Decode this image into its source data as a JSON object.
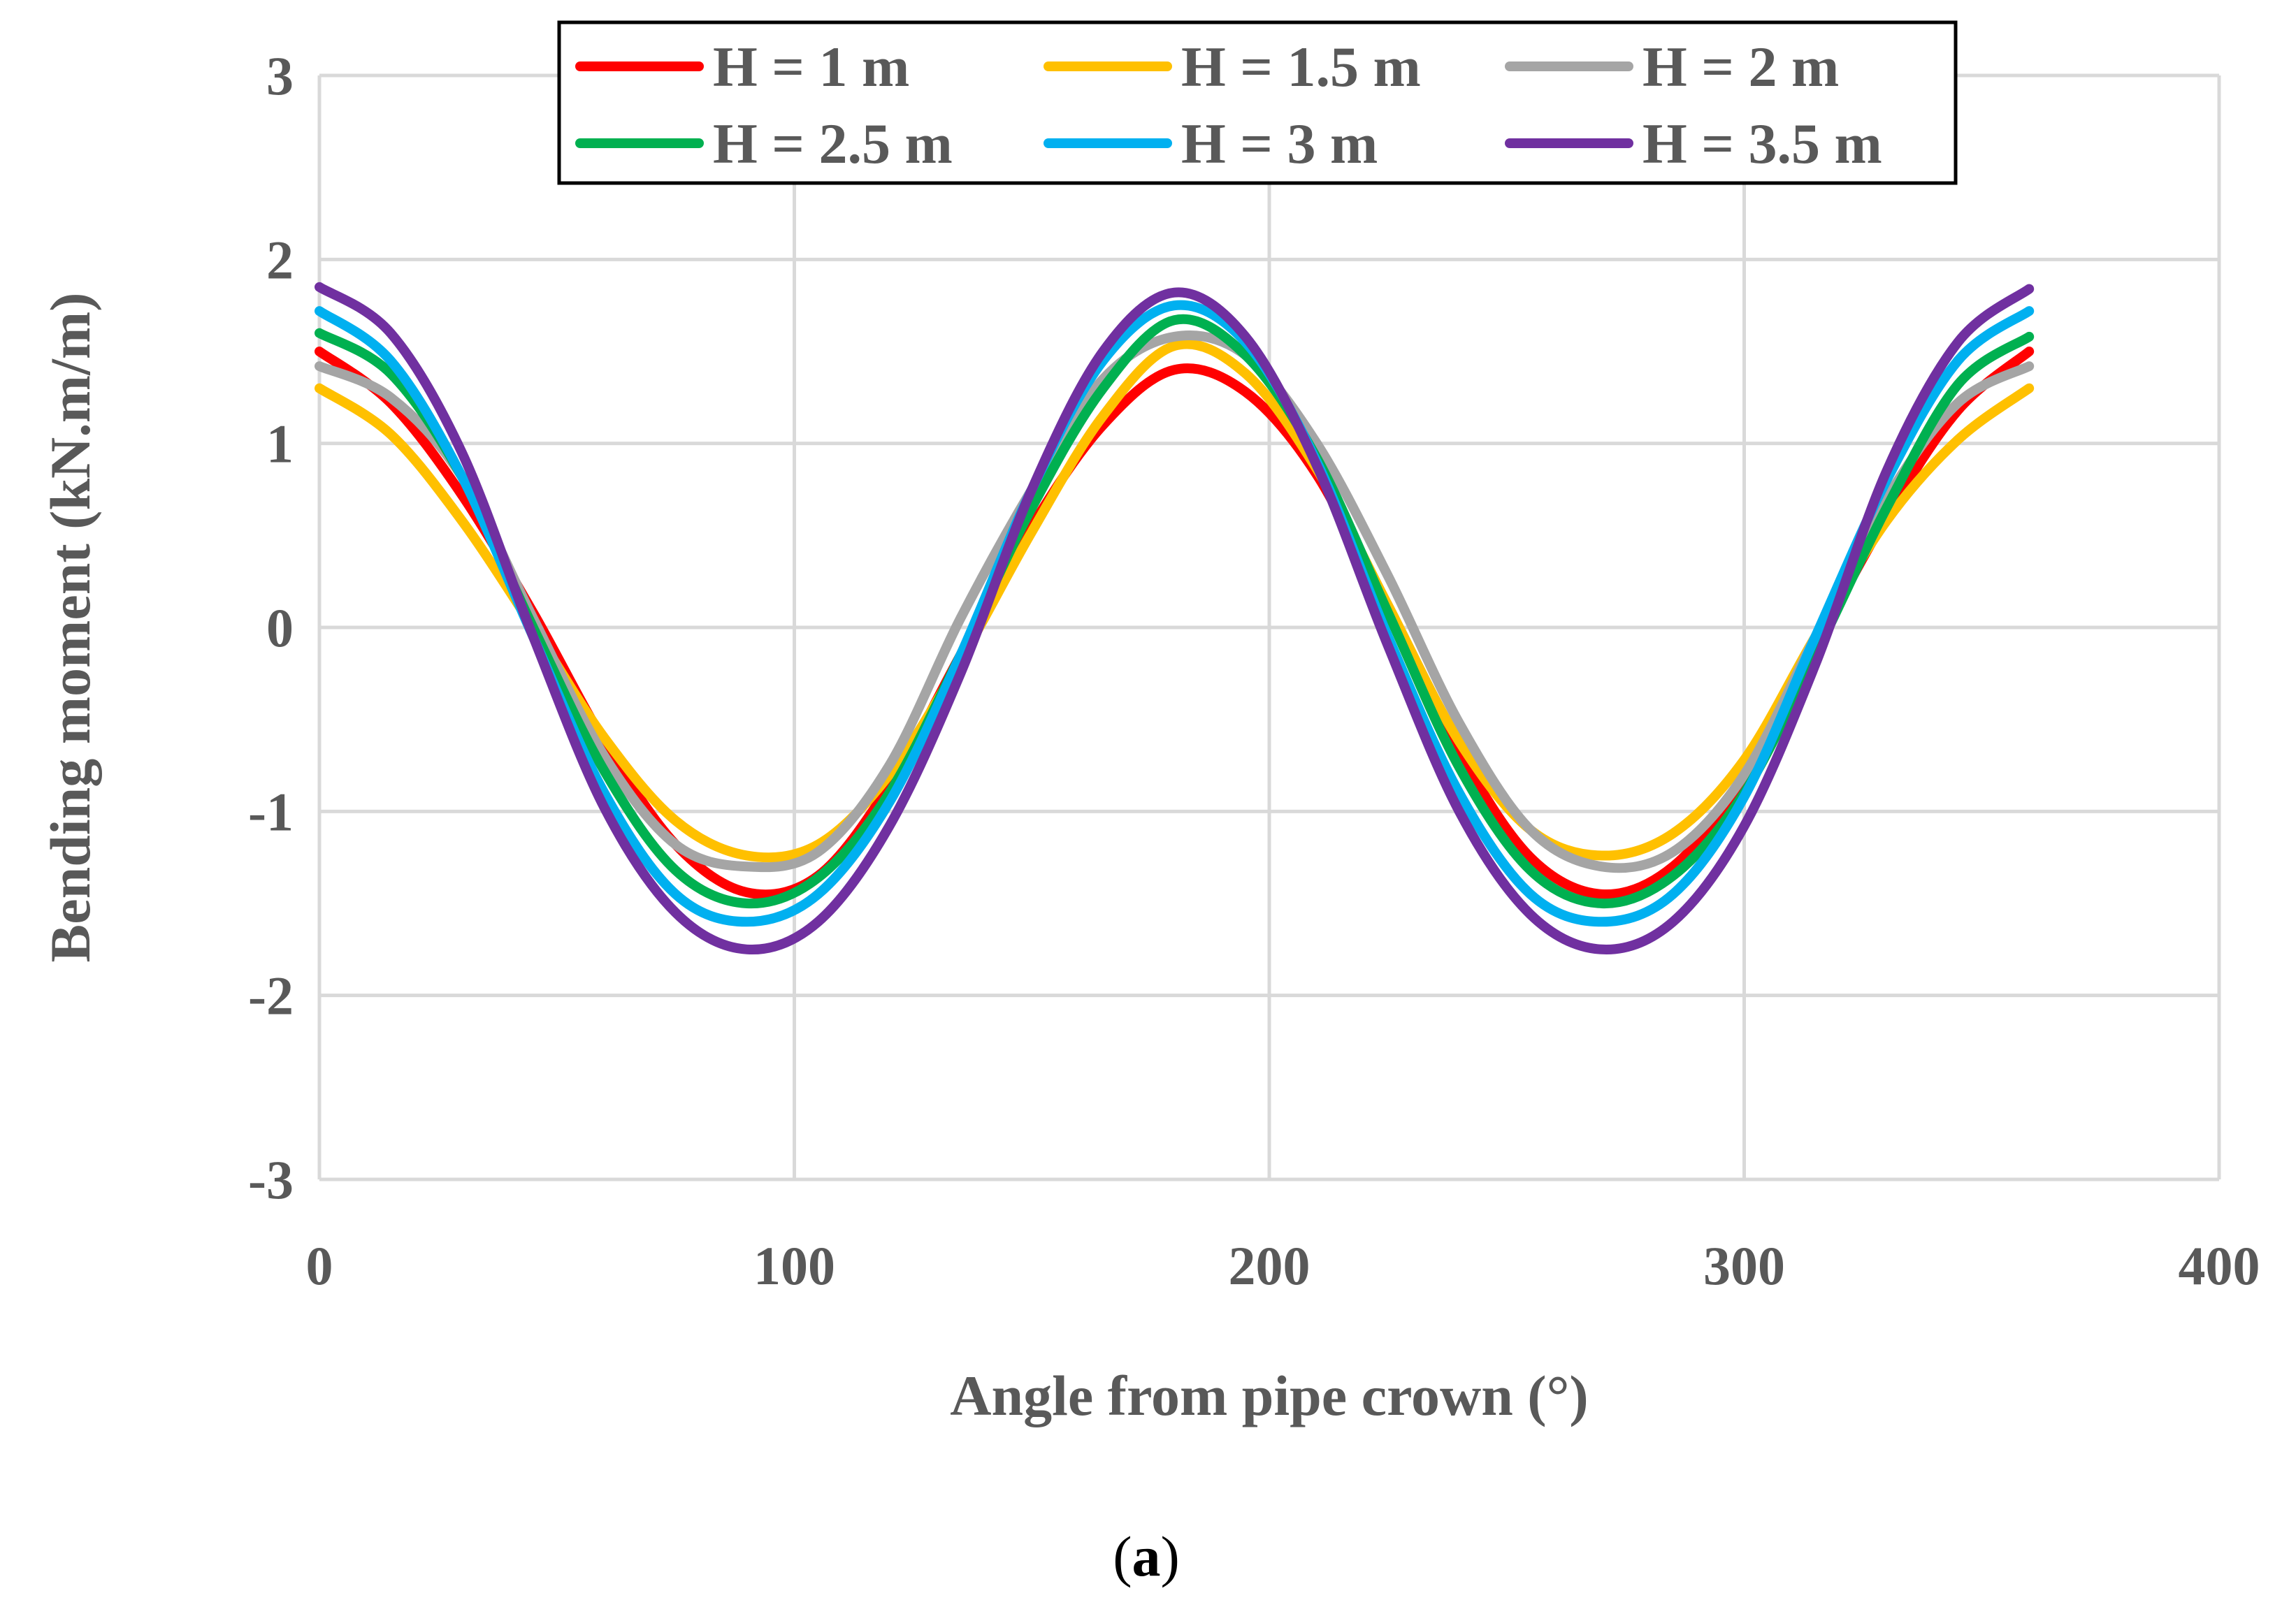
{
  "chart_data": {
    "type": "line",
    "title": "",
    "xlabel": "Angle from pipe crown (°)",
    "ylabel": "Bending moment (kN.m/m)",
    "xlim": [
      0,
      400
    ],
    "ylim": [
      -3,
      3
    ],
    "xticks": [
      "0",
      "100",
      "200",
      "300",
      "400"
    ],
    "yticks": [
      "3",
      "2",
      "1",
      "0",
      "-1",
      "-2",
      "-3"
    ],
    "grid": true,
    "legend_position": "top",
    "caption": {
      "open": "(",
      "letter": "a",
      "close": ")"
    },
    "x": [
      0,
      15,
      30,
      45,
      60,
      75,
      90,
      105,
      120,
      135,
      150,
      165,
      180,
      195,
      210,
      225,
      240,
      255,
      270,
      285,
      300,
      315,
      330,
      345,
      360
    ],
    "series": [
      {
        "name": "H = 1 m",
        "color": "#ff0000",
        "values": [
          1.5,
          1.22,
          0.72,
          0.08,
          -0.62,
          -1.18,
          -1.44,
          -1.35,
          -0.86,
          -0.15,
          0.55,
          1.1,
          1.4,
          1.28,
          0.83,
          0.08,
          -0.68,
          -1.25,
          -1.45,
          -1.3,
          -0.82,
          -0.1,
          0.6,
          1.18,
          1.5
        ]
      },
      {
        "name": "H = 1.5 m",
        "color": "#ffc000",
        "values": [
          1.3,
          1.05,
          0.58,
          0.0,
          -0.6,
          -1.05,
          -1.24,
          -1.18,
          -0.8,
          -0.18,
          0.52,
          1.15,
          1.53,
          1.38,
          0.86,
          0.12,
          -0.62,
          -1.1,
          -1.24,
          -1.12,
          -0.72,
          -0.05,
          0.58,
          1.02,
          1.3
        ]
      },
      {
        "name": "H = 2 m",
        "color": "#a5a5a5",
        "values": [
          1.42,
          1.25,
          0.82,
          0.05,
          -0.7,
          -1.18,
          -1.3,
          -1.22,
          -0.75,
          0.05,
          0.75,
          1.35,
          1.58,
          1.48,
          1.0,
          0.28,
          -0.52,
          -1.1,
          -1.3,
          -1.22,
          -0.8,
          -0.05,
          0.7,
          1.22,
          1.42
        ]
      },
      {
        "name": "H = 2.5 m",
        "color": "#00b050",
        "values": [
          1.6,
          1.38,
          0.82,
          0.0,
          -0.78,
          -1.32,
          -1.5,
          -1.36,
          -0.9,
          -0.15,
          0.65,
          1.3,
          1.67,
          1.48,
          0.92,
          0.08,
          -0.76,
          -1.32,
          -1.5,
          -1.35,
          -0.9,
          -0.15,
          0.65,
          1.32,
          1.58
        ]
      },
      {
        "name": "H = 3 m",
        "color": "#00b0f0",
        "values": [
          1.72,
          1.45,
          0.82,
          -0.05,
          -0.9,
          -1.45,
          -1.6,
          -1.45,
          -0.95,
          -0.15,
          0.75,
          1.45,
          1.75,
          1.55,
          0.9,
          -0.05,
          -0.9,
          -1.45,
          -1.6,
          -1.45,
          -0.92,
          -0.05,
          0.8,
          1.45,
          1.72
        ]
      },
      {
        "name": "H = 3.5 m",
        "color": "#7030a0",
        "values": [
          1.85,
          1.6,
          0.95,
          -0.05,
          -0.98,
          -1.55,
          -1.75,
          -1.6,
          -1.08,
          -0.25,
          0.75,
          1.5,
          1.82,
          1.58,
          0.88,
          -0.1,
          -1.0,
          -1.56,
          -1.75,
          -1.6,
          -1.08,
          -0.2,
          0.85,
          1.55,
          1.84
        ]
      }
    ]
  }
}
